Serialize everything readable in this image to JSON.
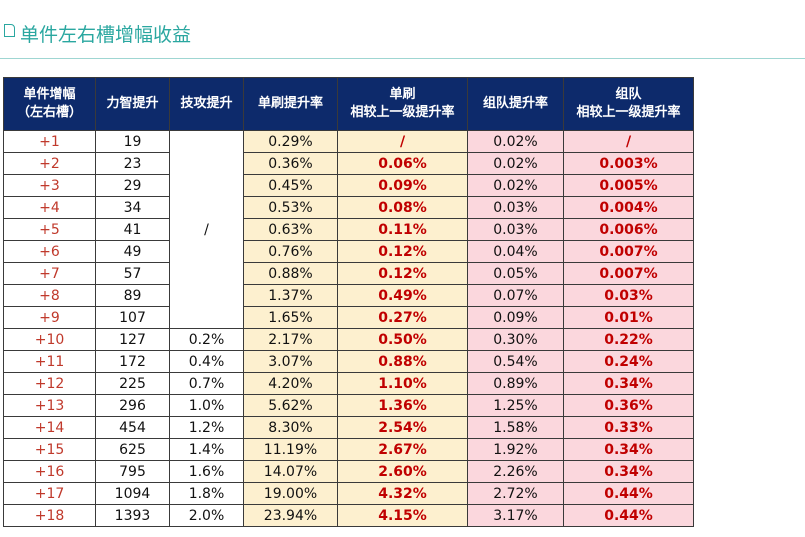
{
  "title": "单件左右槽增幅收益",
  "colors": {
    "accent": "#2aa7a0",
    "header_bg": "#0d2a6b",
    "solo_bg": "#fdf0cf",
    "team_bg": "#fbd7dd",
    "highlight_text": "#c00000",
    "level_text": "#c0392b"
  },
  "table": {
    "headers": [
      {
        "line1": "单件增幅",
        "line2": "（左右槽）"
      },
      {
        "line1": "力智提升",
        "line2": ""
      },
      {
        "line1": "技攻提升",
        "line2": ""
      },
      {
        "line1": "单刷提升率",
        "line2": ""
      },
      {
        "line1": "单刷",
        "line2": "相较上一级提升率"
      },
      {
        "line1": "组队提升率",
        "line2": ""
      },
      {
        "line1": "组队",
        "line2": "相较上一级提升率"
      }
    ],
    "merged_skill_value": "/",
    "rows": [
      {
        "level": "+1",
        "stat": "19",
        "skill": "",
        "solo": "0.29%",
        "solo_delta": "/",
        "team": "0.02%",
        "team_delta": "/"
      },
      {
        "level": "+2",
        "stat": "23",
        "skill": "",
        "solo": "0.36%",
        "solo_delta": "0.06%",
        "team": "0.02%",
        "team_delta": "0.003%"
      },
      {
        "level": "+3",
        "stat": "29",
        "skill": "",
        "solo": "0.45%",
        "solo_delta": "0.09%",
        "team": "0.02%",
        "team_delta": "0.005%"
      },
      {
        "level": "+4",
        "stat": "34",
        "skill": "",
        "solo": "0.53%",
        "solo_delta": "0.08%",
        "team": "0.03%",
        "team_delta": "0.004%"
      },
      {
        "level": "+5",
        "stat": "41",
        "skill": "",
        "solo": "0.63%",
        "solo_delta": "0.11%",
        "team": "0.03%",
        "team_delta": "0.006%"
      },
      {
        "level": "+6",
        "stat": "49",
        "skill": "",
        "solo": "0.76%",
        "solo_delta": "0.12%",
        "team": "0.04%",
        "team_delta": "0.007%"
      },
      {
        "level": "+7",
        "stat": "57",
        "skill": "",
        "solo": "0.88%",
        "solo_delta": "0.12%",
        "team": "0.05%",
        "team_delta": "0.007%"
      },
      {
        "level": "+8",
        "stat": "89",
        "skill": "",
        "solo": "1.37%",
        "solo_delta": "0.49%",
        "team": "0.07%",
        "team_delta": "0.03%"
      },
      {
        "level": "+9",
        "stat": "107",
        "skill": "",
        "solo": "1.65%",
        "solo_delta": "0.27%",
        "team": "0.09%",
        "team_delta": "0.01%"
      },
      {
        "level": "+10",
        "stat": "127",
        "skill": "0.2%",
        "solo": "2.17%",
        "solo_delta": "0.50%",
        "team": "0.30%",
        "team_delta": "0.22%"
      },
      {
        "level": "+11",
        "stat": "172",
        "skill": "0.4%",
        "solo": "3.07%",
        "solo_delta": "0.88%",
        "team": "0.54%",
        "team_delta": "0.24%"
      },
      {
        "level": "+12",
        "stat": "225",
        "skill": "0.7%",
        "solo": "4.20%",
        "solo_delta": "1.10%",
        "team": "0.89%",
        "team_delta": "0.34%"
      },
      {
        "level": "+13",
        "stat": "296",
        "skill": "1.0%",
        "solo": "5.62%",
        "solo_delta": "1.36%",
        "team": "1.25%",
        "team_delta": "0.36%"
      },
      {
        "level": "+14",
        "stat": "454",
        "skill": "1.2%",
        "solo": "8.30%",
        "solo_delta": "2.54%",
        "team": "1.58%",
        "team_delta": "0.33%"
      },
      {
        "level": "+15",
        "stat": "625",
        "skill": "1.4%",
        "solo": "11.19%",
        "solo_delta": "2.67%",
        "team": "1.92%",
        "team_delta": "0.34%"
      },
      {
        "level": "+16",
        "stat": "795",
        "skill": "1.6%",
        "solo": "14.07%",
        "solo_delta": "2.60%",
        "team": "2.26%",
        "team_delta": "0.34%"
      },
      {
        "level": "+17",
        "stat": "1094",
        "skill": "1.8%",
        "solo": "19.00%",
        "solo_delta": "4.32%",
        "team": "2.72%",
        "team_delta": "0.44%"
      },
      {
        "level": "+18",
        "stat": "1393",
        "skill": "2.0%",
        "solo": "23.94%",
        "solo_delta": "4.15%",
        "team": "3.17%",
        "team_delta": "0.44%"
      }
    ]
  }
}
